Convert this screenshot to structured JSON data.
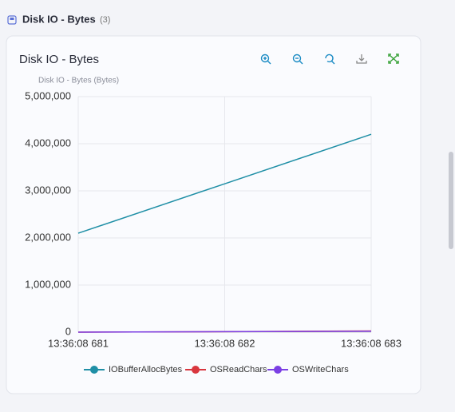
{
  "section": {
    "title": "Disk IO - Bytes",
    "count": "(3)"
  },
  "card": {
    "title": "Disk IO - Bytes"
  },
  "chart_data": {
    "type": "line",
    "title": "Disk IO - Bytes (Bytes)",
    "categories": [
      "13:36:08 681",
      "13:36:08 682",
      "13:36:08 683"
    ],
    "series": [
      {
        "name": "IOBufferAllocBytes",
        "color": "#1f8fa6",
        "values": [
          2100000,
          3150000,
          4200000
        ]
      },
      {
        "name": "OSReadChars",
        "color": "#d9363e",
        "values": [
          0,
          10000,
          25000
        ]
      },
      {
        "name": "OSWriteChars",
        "color": "#7b3fe4",
        "values": [
          0,
          10000,
          20000
        ]
      }
    ],
    "ylim": [
      0,
      5000000
    ],
    "yticks": [
      0,
      {
        "value": 1000000,
        "label": "1,000,000"
      },
      {
        "value": 2000000,
        "label": "2,000,000"
      },
      {
        "value": 3000000,
        "label": "3,000,000"
      },
      {
        "value": 4000000,
        "label": "4,000,000"
      },
      {
        "value": 5000000,
        "label": "5,000,000"
      }
    ],
    "grid": true
  }
}
